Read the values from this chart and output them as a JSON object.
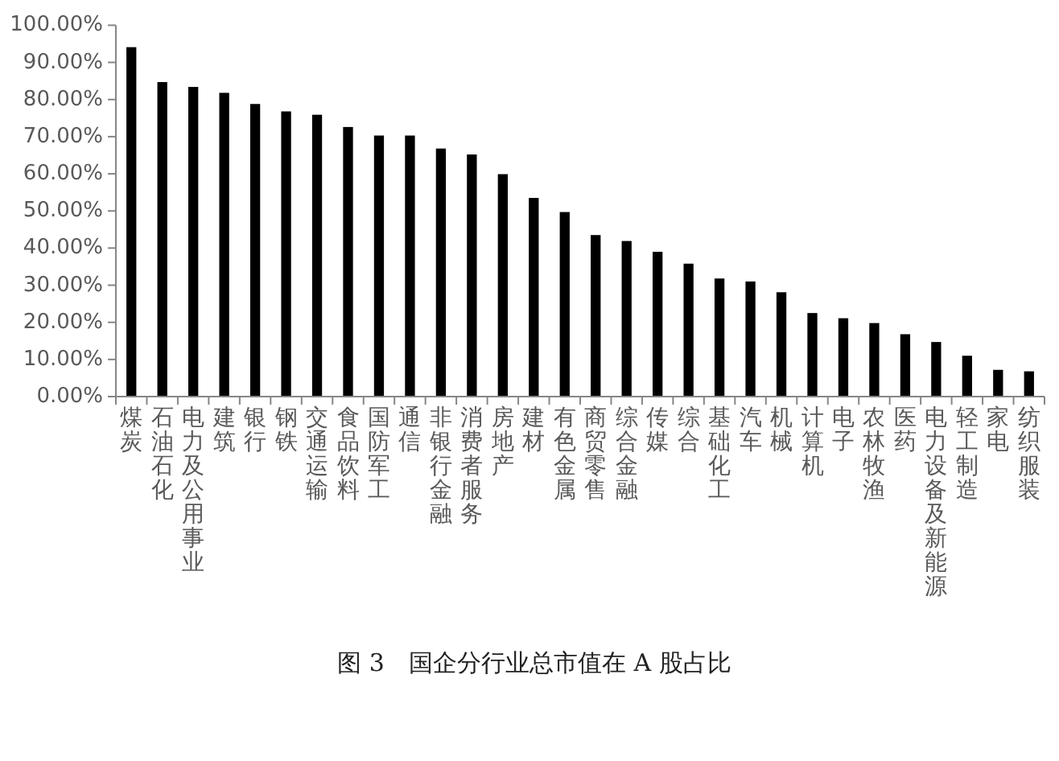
{
  "chart_data": {
    "type": "bar",
    "title": "图 3　国企分行业总市值在 A 股占比",
    "categories": [
      "煤炭",
      "石油石化",
      "电力及公用事业",
      "建筑",
      "银行",
      "钢铁",
      "交通运输",
      "食品饮料",
      "国防军工",
      "通信",
      "非银行金融",
      "消费者服务",
      "房地产",
      "建材",
      "有色金属",
      "商贸零售",
      "综合金融",
      "传媒",
      "综合",
      "基础化工",
      "汽车",
      "机械",
      "计算机",
      "电子",
      "农林牧渔",
      "医药",
      "电力设备及新能源",
      "轻工制造",
      "家电",
      "纺织服装"
    ],
    "values": [
      94.1,
      84.7,
      83.4,
      81.8,
      78.8,
      76.8,
      75.9,
      72.6,
      70.3,
      70.3,
      66.8,
      65.2,
      59.9,
      53.5,
      49.7,
      43.5,
      41.9,
      39.0,
      35.8,
      31.8,
      31.0,
      28.1,
      22.5,
      21.1,
      19.8,
      16.8,
      14.7,
      11.0,
      7.2,
      6.8
    ],
    "color": "#000000",
    "ylim": [
      0,
      100
    ],
    "yticks": [
      {
        "value": 0,
        "label": "0.00%"
      },
      {
        "value": 10,
        "label": "10.00%"
      },
      {
        "value": 20,
        "label": "20.00%"
      },
      {
        "value": 30,
        "label": "30.00%"
      },
      {
        "value": 40,
        "label": "40.00%"
      },
      {
        "value": 50,
        "label": "50.00%"
      },
      {
        "value": 60,
        "label": "60.00%"
      },
      {
        "value": 70,
        "label": "70.00%"
      },
      {
        "value": 80,
        "label": "80.00%"
      },
      {
        "value": 90,
        "label": "90.00%"
      },
      {
        "value": 100,
        "label": "100.00%"
      }
    ]
  }
}
